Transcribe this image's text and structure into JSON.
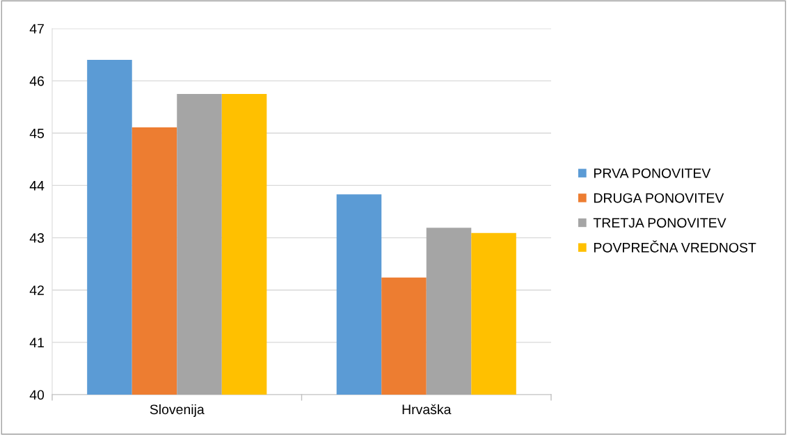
{
  "chart_data": {
    "type": "bar",
    "categories": [
      "Slovenija",
      "Hrvaška"
    ],
    "series": [
      {
        "name": "PRVA PONOVITEV",
        "color": "#5b9bd5",
        "values": [
          46.4,
          43.83
        ]
      },
      {
        "name": "DRUGA PONOVITEV",
        "color": "#ed7d31",
        "values": [
          45.11,
          42.24
        ]
      },
      {
        "name": "TRETJA PONOVITEV",
        "color": "#a5a5a5",
        "values": [
          45.75,
          43.19
        ]
      },
      {
        "name": "POVPREČNA VREDNOST",
        "color": "#ffc000",
        "values": [
          45.75,
          43.09
        ]
      }
    ],
    "ylim": [
      40,
      47
    ],
    "yticks": [
      40,
      41,
      42,
      43,
      44,
      45,
      46,
      47
    ],
    "grid": "y",
    "legend": "right"
  }
}
